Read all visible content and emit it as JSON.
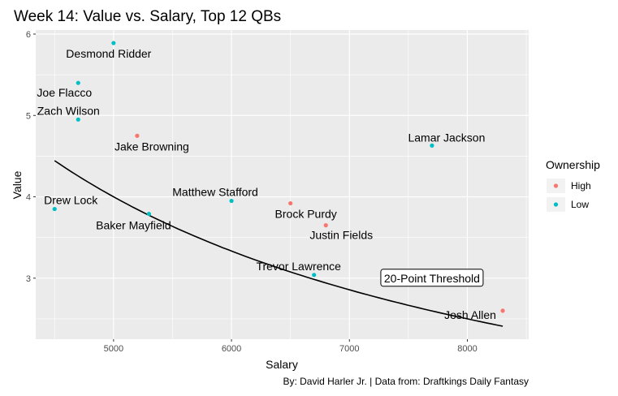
{
  "chart_data": {
    "type": "scatter",
    "title": "Week 14: Value vs. Salary, Top 12 QBs",
    "xlabel": "Salary",
    "ylabel": "Value",
    "caption": "By: David Harler Jr. | Data from: Draftkings Daily Fantasy",
    "xlim": [
      4340,
      8520
    ],
    "ylim": [
      2.25,
      6.05
    ],
    "xticks": [
      5000,
      6000,
      7000,
      8000
    ],
    "yticks": [
      3,
      4,
      5,
      6
    ],
    "grid": true,
    "legend": {
      "title": "Ownership",
      "position": "right",
      "entries": [
        {
          "label": "High",
          "color": "#F8766D"
        },
        {
          "label": "Low",
          "color": "#00BFC4"
        }
      ]
    },
    "points": [
      {
        "label": "Desmond Ridder",
        "x": 5000,
        "y": 5.89,
        "ownership": "Low"
      },
      {
        "label": "Joe Flacco",
        "x": 4700,
        "y": 5.4,
        "ownership": "Low"
      },
      {
        "label": "Zach Wilson",
        "x": 4700,
        "y": 4.95,
        "ownership": "Low"
      },
      {
        "label": "Jake Browning",
        "x": 5200,
        "y": 4.75,
        "ownership": "High"
      },
      {
        "label": "Lamar Jackson",
        "x": 7700,
        "y": 4.63,
        "ownership": "Low"
      },
      {
        "label": "Drew Lock",
        "x": 4500,
        "y": 3.85,
        "ownership": "Low"
      },
      {
        "label": "Baker Mayfield",
        "x": 5300,
        "y": 3.79,
        "ownership": "Low"
      },
      {
        "label": "Matthew Stafford",
        "x": 6000,
        "y": 3.95,
        "ownership": "Low"
      },
      {
        "label": "Brock Purdy",
        "x": 6500,
        "y": 3.92,
        "ownership": "High"
      },
      {
        "label": "Justin Fields",
        "x": 6800,
        "y": 3.65,
        "ownership": "High"
      },
      {
        "label": "Trevor Lawrence",
        "x": 6700,
        "y": 3.04,
        "ownership": "Low"
      },
      {
        "label": "Josh Allen",
        "x": 8300,
        "y": 2.6,
        "ownership": "High"
      }
    ],
    "reference_line": {
      "label": "20-Point Threshold",
      "equation": "y = 20000 / x",
      "x_range": [
        4500,
        8300
      ],
      "label_x": 7700,
      "label_y": 3.0
    }
  }
}
